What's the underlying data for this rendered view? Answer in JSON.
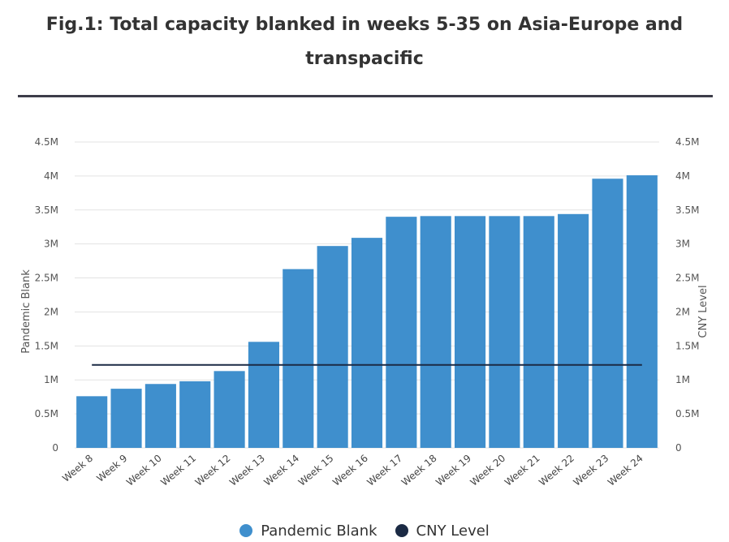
{
  "title": "Fig.1: Total capacity blanked in weeks 5-35 on Asia-Europe and transpacific",
  "colors": {
    "pandemic_blank": "#3f8fcd",
    "cny_level": "#1b2a44",
    "grid": "#e3e3e3",
    "title_rule": "#3d3d4a"
  },
  "legend": {
    "items": [
      {
        "label": "Pandemic Blank",
        "color": "#3f8fcd"
      },
      {
        "label": "CNY Level",
        "color": "#1b2a44"
      }
    ],
    "placement": "bottom-center"
  },
  "chart_data": {
    "type": "bar",
    "title": "Fig.1: Total capacity blanked in weeks 5-35 on Asia-Europe and transpacific",
    "categories": [
      "Week 8",
      "Week 9",
      "Week 10",
      "Week 11",
      "Week 12",
      "Week 13",
      "Week 14",
      "Week 15",
      "Week 16",
      "Week 17",
      "Week 18",
      "Week 19",
      "Week 20",
      "Week 21",
      "Week 22",
      "Week 23",
      "Week 24"
    ],
    "series": [
      {
        "name": "Pandemic Blank",
        "type": "bar",
        "axis": "left",
        "values": [
          760000,
          870000,
          940000,
          980000,
          1130000,
          1560000,
          2630000,
          2970000,
          3090000,
          3400000,
          3410000,
          3410000,
          3410000,
          3410000,
          3440000,
          3960000,
          4010000
        ]
      },
      {
        "name": "CNY Level",
        "type": "line",
        "axis": "right",
        "values": [
          1220000,
          1220000,
          1220000,
          1220000,
          1220000,
          1220000,
          1220000,
          1220000,
          1220000,
          1220000,
          1220000,
          1220000,
          1220000,
          1220000,
          1220000,
          1220000,
          1220000
        ]
      }
    ],
    "ylabel": "Pandemic Blank",
    "y2label": "CNY Level",
    "ylim": [
      0,
      4500000
    ],
    "y2lim": [
      0,
      4500000
    ],
    "yticks": [
      0,
      500000,
      1000000,
      1500000,
      2000000,
      2500000,
      3000000,
      3500000,
      4000000,
      4500000
    ],
    "ytick_labels": [
      "0",
      "0.5M",
      "1M",
      "1.5M",
      "2M",
      "2.5M",
      "3M",
      "3.5M",
      "4M",
      "4.5M"
    ],
    "grid": true,
    "legend_position": "bottom"
  }
}
